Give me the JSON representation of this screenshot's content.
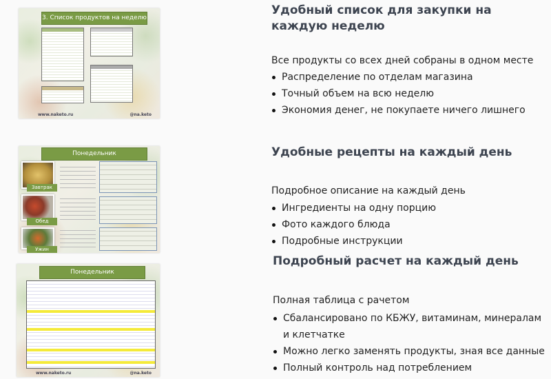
{
  "sections": [
    {
      "title": "Удобный список для закупки на каждую неделю",
      "intro": "Все продукты со всех дней собраны в одном месте",
      "bullets": [
        "Распределение по отделам магазина",
        "Точный объем на всю неделю",
        "Экономия денег, не покупаете ничего лишнего"
      ],
      "slide": {
        "title": "3. Список продуктов на неделю",
        "footer_left": "www.naketo.ru",
        "footer_right": "@na.keto"
      }
    },
    {
      "title": "Удобные рецепты на каждый день",
      "intro": "Подробное описание на каждый день",
      "bullets": [
        "Ингредиенты на одну порцию",
        "Фото каждого блюда",
        "Подробные инструкции"
      ],
      "slide": {
        "title": "Понедельник",
        "meals": [
          "Завтрак",
          "Обед",
          "Ужин"
        ]
      }
    },
    {
      "title": "Подробный расчет на каждый день",
      "intro": "Полная таблица с рачетом",
      "bullets": [
        "Сбалансировано по КБЖУ, витаминам, минералам и клетчатке",
        "Можно легко заменять продукты, зная все данные",
        "Полный контроль над потреблением"
      ],
      "slide": {
        "title": "Понедельник",
        "footer_left": "www.naketo.ru",
        "footer_right": "@na.keto"
      }
    }
  ],
  "colors": {
    "accent_green": "#7a9b45",
    "heading": "#3d4450",
    "highlight": "#f4ea3a"
  }
}
